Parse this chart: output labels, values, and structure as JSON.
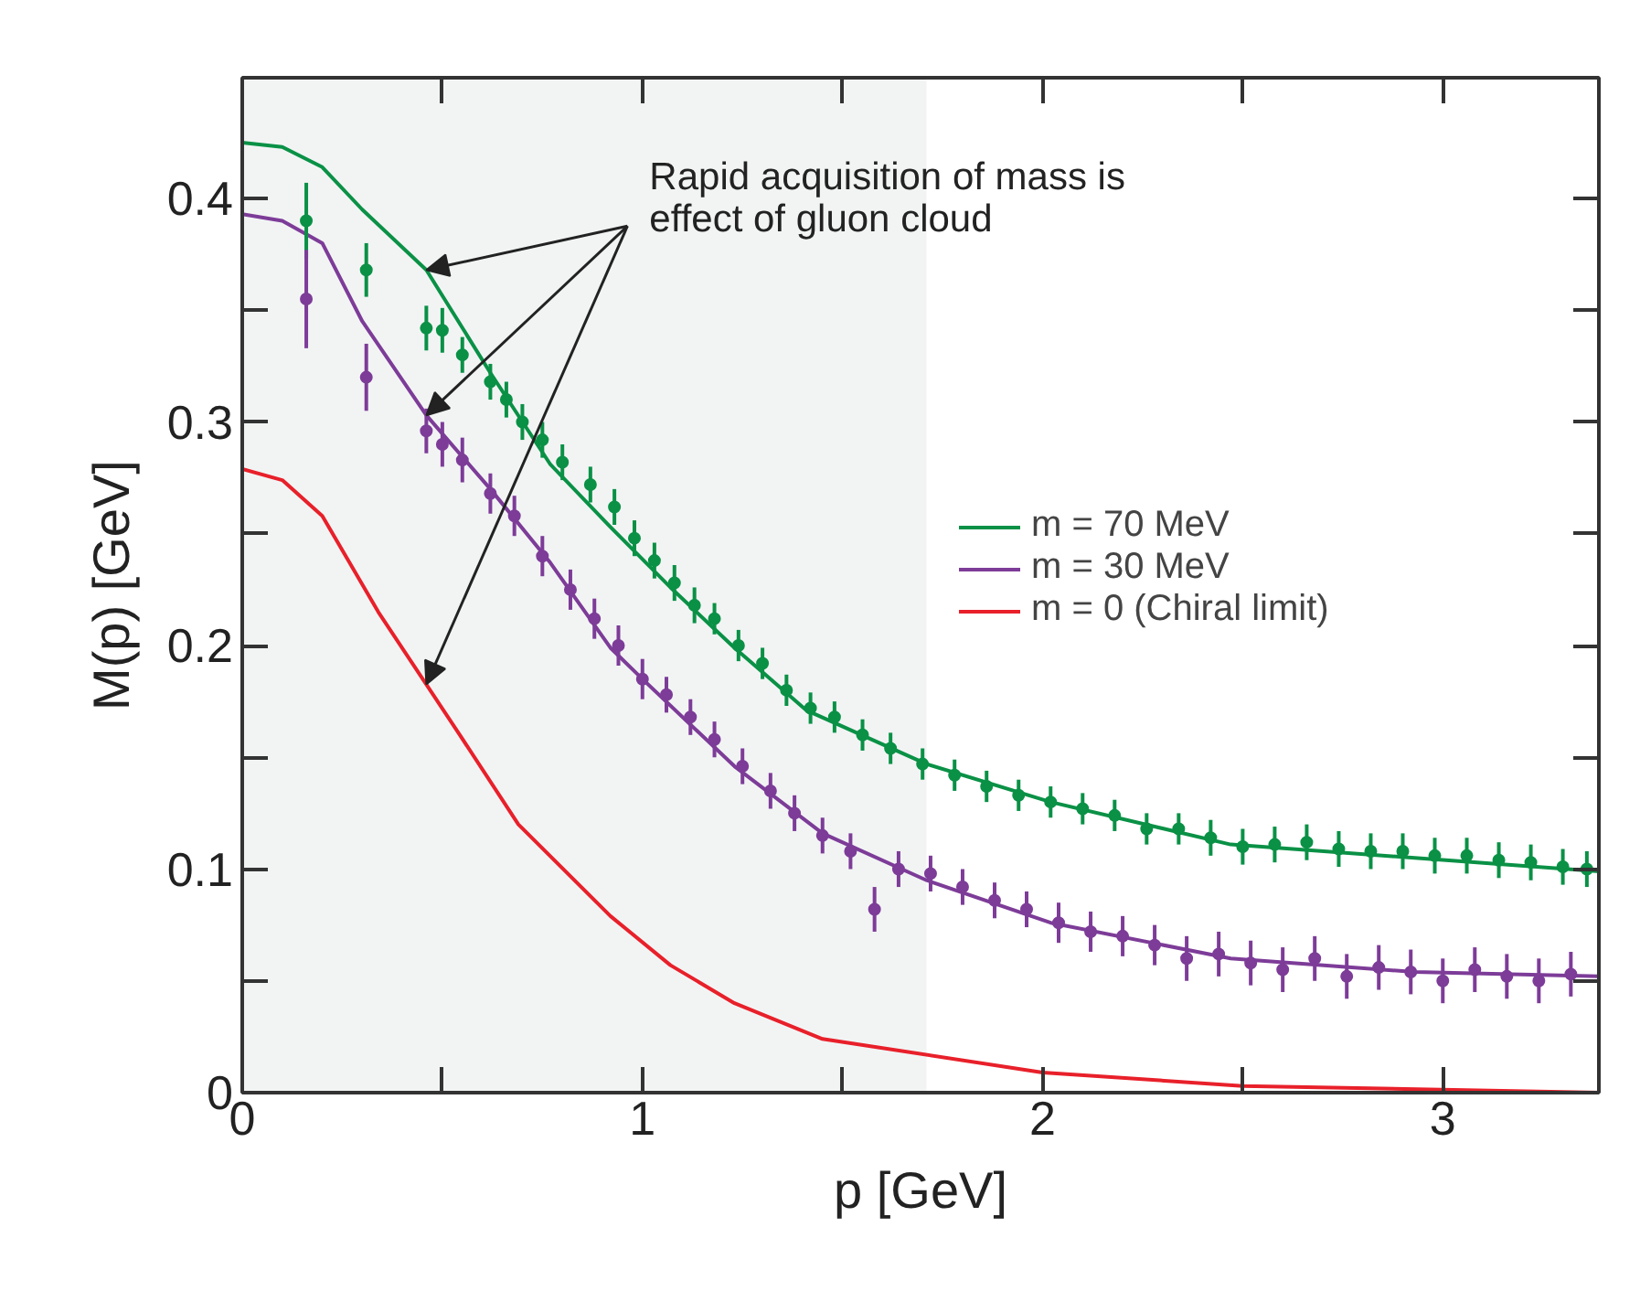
{
  "chart_data": {
    "type": "line",
    "xlabel": "p [GeV]",
    "ylabel": "M(p) [GeV]",
    "xlim": [
      0,
      3.39
    ],
    "ylim": [
      0,
      0.454
    ],
    "xticks": [
      0,
      {
        "value": 0.5,
        "label": null
      },
      1,
      {
        "value": 1.5,
        "label": null
      },
      2,
      {
        "value": 2.5,
        "label": null
      },
      3
    ],
    "yticks": [
      0,
      {
        "value": 0.05,
        "label": null
      },
      0.1,
      {
        "value": 0.15,
        "label": null
      },
      0.2,
      {
        "value": 0.25,
        "label": null
      },
      0.3,
      {
        "value": 0.35,
        "label": null
      },
      0.4
    ],
    "legend": "right",
    "bands": [
      {
        "axis": "x",
        "from": 0,
        "to": 1.71,
        "color": "#f2f4f4"
      }
    ],
    "annotations": [
      {
        "text": "Rapid acquisition of mass is\neffect of gluon cloud",
        "x": 0.46,
        "y": 0.368
      }
    ],
    "series": [
      {
        "name": "m = 70 MeV",
        "color": "#0a9146",
        "x": [
          0,
          0.1,
          0.2,
          0.3,
          0.46,
          0.62,
          0.77,
          0.92,
          1.07,
          1.23,
          1.41,
          1.71,
          2.02,
          2.47,
          2.93,
          3.39
        ],
        "values": [
          0.425,
          0.423,
          0.414,
          0.395,
          0.368,
          0.322,
          0.281,
          0.253,
          0.226,
          0.199,
          0.171,
          0.147,
          0.13,
          0.111,
          0.105,
          0.099
        ]
      },
      {
        "name": "m = 30 MeV",
        "color": "#7d3c98",
        "x": [
          0,
          0.1,
          0.2,
          0.3,
          0.46,
          0.62,
          0.77,
          0.92,
          1.0,
          1.23,
          1.45,
          1.71,
          2.02,
          2.47,
          2.93,
          3.39
        ],
        "values": [
          0.393,
          0.39,
          0.38,
          0.345,
          0.303,
          0.27,
          0.237,
          0.199,
          0.185,
          0.146,
          0.116,
          0.095,
          0.076,
          0.06,
          0.054,
          0.052
        ]
      },
      {
        "name": "m = 0 (Chiral limit)",
        "color": "#e8202a",
        "x": [
          0,
          0.1,
          0.2,
          0.34,
          0.54,
          0.69,
          0.92,
          1.07,
          1.23,
          1.45,
          2.0,
          2.5,
          3.39
        ],
        "values": [
          0.279,
          0.274,
          0.258,
          0.215,
          0.161,
          0.12,
          0.079,
          0.057,
          0.04,
          0.024,
          0.009,
          0.003,
          0.0
        ]
      },
      {
        "type": "scatter",
        "marker": "circle",
        "color": "#0a9146",
        "x": [
          0.16,
          0.31,
          0.46,
          0.5,
          0.55,
          0.62,
          0.66,
          0.7,
          0.75,
          0.8,
          0.87,
          0.93,
          0.98,
          1.03,
          1.08,
          1.13,
          1.18,
          1.24,
          1.3,
          1.36,
          1.42,
          1.48,
          1.55,
          1.62,
          1.7,
          1.78,
          1.86,
          1.94,
          2.02,
          2.1,
          2.18,
          2.26,
          2.34,
          2.42,
          2.5,
          2.58,
          2.66,
          2.74,
          2.82,
          2.9,
          2.98,
          3.06,
          3.14,
          3.22,
          3.3,
          3.36
        ],
        "values": [
          0.39,
          0.368,
          0.342,
          0.341,
          0.33,
          0.318,
          0.31,
          0.3,
          0.292,
          0.282,
          0.272,
          0.262,
          0.248,
          0.238,
          0.228,
          0.218,
          0.212,
          0.2,
          0.192,
          0.18,
          0.172,
          0.168,
          0.16,
          0.154,
          0.147,
          0.142,
          0.137,
          0.133,
          0.13,
          0.127,
          0.124,
          0.118,
          0.118,
          0.114,
          0.11,
          0.111,
          0.112,
          0.109,
          0.108,
          0.108,
          0.106,
          0.106,
          0.104,
          0.103,
          0.101,
          0.1
        ],
        "errors": [
          0.017,
          0.012,
          0.01,
          0.01,
          0.008,
          0.008,
          0.008,
          0.008,
          0.008,
          0.008,
          0.008,
          0.008,
          0.008,
          0.008,
          0.008,
          0.008,
          0.007,
          0.007,
          0.007,
          0.007,
          0.007,
          0.007,
          0.007,
          0.007,
          0.007,
          0.007,
          0.007,
          0.007,
          0.007,
          0.007,
          0.007,
          0.007,
          0.007,
          0.008,
          0.008,
          0.008,
          0.008,
          0.008,
          0.008,
          0.008,
          0.008,
          0.008,
          0.008,
          0.008,
          0.008,
          0.008
        ]
      },
      {
        "type": "scatter",
        "marker": "circle",
        "color": "#7d3c98",
        "x": [
          0.16,
          0.31,
          0.46,
          0.5,
          0.55,
          0.62,
          0.68,
          0.75,
          0.82,
          0.88,
          0.94,
          1.0,
          1.06,
          1.12,
          1.18,
          1.25,
          1.32,
          1.38,
          1.45,
          1.52,
          1.58,
          1.64,
          1.72,
          1.8,
          1.88,
          1.96,
          2.04,
          2.12,
          2.2,
          2.28,
          2.36,
          2.44,
          2.52,
          2.6,
          2.68,
          2.76,
          2.84,
          2.92,
          3.0,
          3.08,
          3.16,
          3.24,
          3.32
        ],
        "values": [
          0.355,
          0.32,
          0.296,
          0.29,
          0.283,
          0.268,
          0.258,
          0.24,
          0.225,
          0.212,
          0.2,
          0.185,
          0.178,
          0.168,
          0.158,
          0.146,
          0.135,
          0.125,
          0.115,
          0.108,
          0.082,
          0.1,
          0.098,
          0.092,
          0.086,
          0.082,
          0.076,
          0.072,
          0.07,
          0.066,
          0.06,
          0.062,
          0.058,
          0.055,
          0.06,
          0.052,
          0.056,
          0.054,
          0.05,
          0.055,
          0.052,
          0.05,
          0.053
        ],
        "errors": [
          0.022,
          0.015,
          0.01,
          0.01,
          0.01,
          0.009,
          0.009,
          0.009,
          0.009,
          0.009,
          0.009,
          0.009,
          0.008,
          0.008,
          0.008,
          0.008,
          0.008,
          0.008,
          0.008,
          0.008,
          0.01,
          0.008,
          0.008,
          0.008,
          0.008,
          0.008,
          0.009,
          0.009,
          0.009,
          0.009,
          0.01,
          0.01,
          0.01,
          0.01,
          0.01,
          0.01,
          0.01,
          0.01,
          0.01,
          0.01,
          0.01,
          0.01,
          0.01
        ]
      }
    ]
  }
}
